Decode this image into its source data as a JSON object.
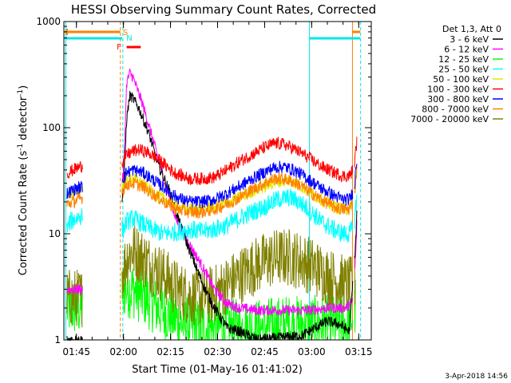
{
  "chart_data": {
    "type": "line",
    "title": "HESSI Observing Summary Count Rates, Corrected",
    "xlabel": "Start Time (01-May-16 01:41:02)",
    "ylabel_main": "Corrected Count Rate (s",
    "ylabel_sup1": "-1",
    "ylabel_mid": " detector",
    "ylabel_sup2": "-1",
    "ylabel_end": ")",
    "y_scale": "log",
    "ylim": [
      1,
      1000
    ],
    "xlim_minutes": [
      0,
      98
    ],
    "x_ticks": [
      {
        "m": 4,
        "label": "01:45"
      },
      {
        "m": 19,
        "label": "02:00"
      },
      {
        "m": 34,
        "label": "02:15"
      },
      {
        "m": 49,
        "label": "02:30"
      },
      {
        "m": 64,
        "label": "02:45"
      },
      {
        "m": 79,
        "label": "03:00"
      },
      {
        "m": 94,
        "label": "03:15"
      }
    ],
    "y_ticks": [
      {
        "v": 1,
        "label": "1"
      },
      {
        "v": 10,
        "label": "10"
      },
      {
        "v": 100,
        "label": "100"
      },
      {
        "v": 1000,
        "label": "1000"
      }
    ],
    "legend_title": "Det 1,3, Att 0",
    "legend_position": "right",
    "footer": "3-Apr-2018 14:56",
    "flags": [
      {
        "label": "S",
        "color": "#ff8000"
      },
      {
        "label": "N",
        "color": "#00e6e6"
      },
      {
        "label": "F",
        "color": "#ff0000"
      }
    ],
    "series": [
      {
        "name": "3 - 6 keV",
        "color": "#000000",
        "points": [
          [
            1,
            1
          ],
          [
            6,
            1
          ],
          [
            19,
            25
          ],
          [
            20,
            120
          ],
          [
            21,
            200
          ],
          [
            22,
            190
          ],
          [
            24,
            150
          ],
          [
            27,
            90
          ],
          [
            30,
            45
          ],
          [
            34,
            24
          ],
          [
            38,
            10
          ],
          [
            42,
            5
          ],
          [
            45,
            3
          ],
          [
            48,
            2
          ],
          [
            52,
            1.3
          ],
          [
            56,
            1.2
          ],
          [
            62,
            1
          ],
          [
            76,
            1.1
          ],
          [
            80,
            1.3
          ],
          [
            84,
            1.5
          ],
          [
            88,
            1.4
          ],
          [
            91,
            1.2
          ],
          [
            92.5,
            5
          ],
          [
            93,
            8
          ],
          [
            93.5,
            20
          ]
        ]
      },
      {
        "name": "6 - 12 keV",
        "color": "#ff00ff",
        "points": [
          [
            1,
            3
          ],
          [
            6,
            3
          ],
          [
            19,
            35
          ],
          [
            20,
            260
          ],
          [
            21,
            330
          ],
          [
            22,
            300
          ],
          [
            25,
            170
          ],
          [
            28,
            85
          ],
          [
            32,
            32
          ],
          [
            36,
            13
          ],
          [
            40,
            8
          ],
          [
            44,
            5
          ],
          [
            48,
            3
          ],
          [
            52,
            2.2
          ],
          [
            56,
            2
          ],
          [
            62,
            1.9
          ],
          [
            70,
            1.9
          ],
          [
            78,
            1.9
          ],
          [
            84,
            2
          ],
          [
            90,
            2
          ],
          [
            92,
            2.3
          ],
          [
            93,
            6
          ],
          [
            93.5,
            15
          ]
        ]
      },
      {
        "name": "12 - 25 keV",
        "color": "#00ff00",
        "points": [
          [
            1,
            2
          ],
          [
            6,
            2
          ],
          [
            19,
            3
          ],
          [
            22,
            3
          ],
          [
            26,
            2.5
          ],
          [
            30,
            2
          ],
          [
            34,
            1.7
          ],
          [
            38,
            1.4
          ],
          [
            42,
            1.3
          ],
          [
            48,
            1.3
          ],
          [
            56,
            1.3
          ],
          [
            62,
            1.3
          ],
          [
            70,
            1.4
          ],
          [
            78,
            1.4
          ],
          [
            86,
            1.4
          ],
          [
            91,
            1.4
          ],
          [
            93,
            2
          ]
        ]
      },
      {
        "name": "25 - 50 keV",
        "color": "#00ffff",
        "points": [
          [
            1,
            11
          ],
          [
            2,
            13
          ],
          [
            4,
            14
          ],
          [
            6,
            15
          ],
          [
            19,
            11
          ],
          [
            20,
            13
          ],
          [
            22,
            14
          ],
          [
            24,
            13
          ],
          [
            28,
            11
          ],
          [
            32,
            10
          ],
          [
            36,
            10.5
          ],
          [
            40,
            11
          ],
          [
            44,
            10.5
          ],
          [
            48,
            11
          ],
          [
            52,
            12
          ],
          [
            56,
            14
          ],
          [
            60,
            16
          ],
          [
            64,
            18
          ],
          [
            68,
            21
          ],
          [
            72,
            22
          ],
          [
            75,
            20
          ],
          [
            78,
            17
          ],
          [
            82,
            13
          ],
          [
            86,
            11
          ],
          [
            89,
            10
          ],
          [
            91,
            10
          ],
          [
            92.5,
            12
          ],
          [
            93.5,
            25
          ]
        ]
      },
      {
        "name": "50 - 100 keV",
        "color": "#e6e600",
        "points": [
          [
            1,
            24
          ],
          [
            3,
            24
          ],
          [
            6,
            27
          ],
          [
            19,
            28
          ],
          [
            20,
            32
          ],
          [
            22,
            33
          ],
          [
            25,
            30
          ],
          [
            28,
            25
          ],
          [
            32,
            21
          ],
          [
            36,
            18
          ],
          [
            40,
            17
          ],
          [
            44,
            17
          ],
          [
            48,
            18
          ],
          [
            52,
            19.5
          ],
          [
            56,
            22
          ],
          [
            60,
            25
          ],
          [
            64,
            28
          ],
          [
            68,
            31
          ],
          [
            72,
            32
          ],
          [
            75,
            29
          ],
          [
            78,
            25
          ],
          [
            82,
            21
          ],
          [
            86,
            18
          ],
          [
            89,
            17
          ],
          [
            91,
            17
          ],
          [
            92.5,
            22
          ],
          [
            93.5,
            45
          ]
        ]
      },
      {
        "name": "100 - 300 keV",
        "color": "#ff0000",
        "points": [
          [
            1,
            37
          ],
          [
            3,
            40
          ],
          [
            6,
            44
          ],
          [
            19,
            48
          ],
          [
            20,
            55
          ],
          [
            22,
            60
          ],
          [
            24,
            62
          ],
          [
            27,
            58
          ],
          [
            31,
            48
          ],
          [
            35,
            38
          ],
          [
            40,
            33
          ],
          [
            44,
            33
          ],
          [
            48,
            34
          ],
          [
            52,
            40
          ],
          [
            56,
            48
          ],
          [
            60,
            56
          ],
          [
            64,
            65
          ],
          [
            67,
            71
          ],
          [
            70,
            70
          ],
          [
            73,
            64
          ],
          [
            76,
            57
          ],
          [
            79,
            50
          ],
          [
            82,
            43
          ],
          [
            86,
            38
          ],
          [
            89,
            35
          ],
          [
            91,
            35
          ],
          [
            92.5,
            42
          ],
          [
            93.5,
            80
          ]
        ]
      },
      {
        "name": "300 - 800 keV",
        "color": "#0000ff",
        "points": [
          [
            1,
            24
          ],
          [
            3,
            26
          ],
          [
            6,
            28
          ],
          [
            19,
            33
          ],
          [
            20,
            38
          ],
          [
            22,
            40
          ],
          [
            25,
            38
          ],
          [
            28,
            33
          ],
          [
            32,
            27
          ],
          [
            36,
            22
          ],
          [
            40,
            20
          ],
          [
            44,
            20
          ],
          [
            48,
            21
          ],
          [
            52,
            24
          ],
          [
            56,
            28
          ],
          [
            60,
            33
          ],
          [
            64,
            38
          ],
          [
            67,
            42
          ],
          [
            70,
            43
          ],
          [
            73,
            40
          ],
          [
            76,
            36
          ],
          [
            79,
            31
          ],
          [
            82,
            27
          ],
          [
            86,
            23
          ],
          [
            89,
            21
          ],
          [
            91,
            21
          ],
          [
            92.5,
            26
          ],
          [
            93.5,
            55
          ]
        ]
      },
      {
        "name": "800 - 7000 keV",
        "color": "#ff8000",
        "points": [
          [
            1,
            19
          ],
          [
            3,
            20
          ],
          [
            6,
            22
          ],
          [
            19,
            26
          ],
          [
            20,
            29
          ],
          [
            22,
            30
          ],
          [
            25,
            28
          ],
          [
            28,
            24
          ],
          [
            32,
            20
          ],
          [
            36,
            17
          ],
          [
            40,
            16
          ],
          [
            44,
            16
          ],
          [
            48,
            17
          ],
          [
            52,
            19
          ],
          [
            56,
            22
          ],
          [
            60,
            26
          ],
          [
            64,
            30
          ],
          [
            67,
            33
          ],
          [
            70,
            33
          ],
          [
            73,
            31
          ],
          [
            76,
            28
          ],
          [
            79,
            24
          ],
          [
            82,
            21
          ],
          [
            86,
            18
          ],
          [
            89,
            17
          ],
          [
            91,
            17
          ],
          [
            92.5,
            21
          ],
          [
            93.5,
            45
          ]
        ]
      },
      {
        "name": "7000 - 20000 keV",
        "color": "#808000",
        "points": [
          [
            1,
            2.5
          ],
          [
            6,
            2.5
          ],
          [
            19,
            4.5
          ],
          [
            20,
            6
          ],
          [
            22,
            7
          ],
          [
            25,
            6
          ],
          [
            28,
            5
          ],
          [
            32,
            4
          ],
          [
            36,
            3
          ],
          [
            40,
            2.6
          ],
          [
            44,
            2.5
          ],
          [
            48,
            2.7
          ],
          [
            52,
            3.3
          ],
          [
            56,
            4
          ],
          [
            60,
            4.8
          ],
          [
            64,
            5.5
          ],
          [
            68,
            6
          ],
          [
            72,
            6
          ],
          [
            76,
            5.5
          ],
          [
            80,
            4.8
          ],
          [
            84,
            4
          ],
          [
            88,
            3.5
          ],
          [
            91,
            3.2
          ],
          [
            93,
            3.5
          ]
        ]
      }
    ]
  }
}
